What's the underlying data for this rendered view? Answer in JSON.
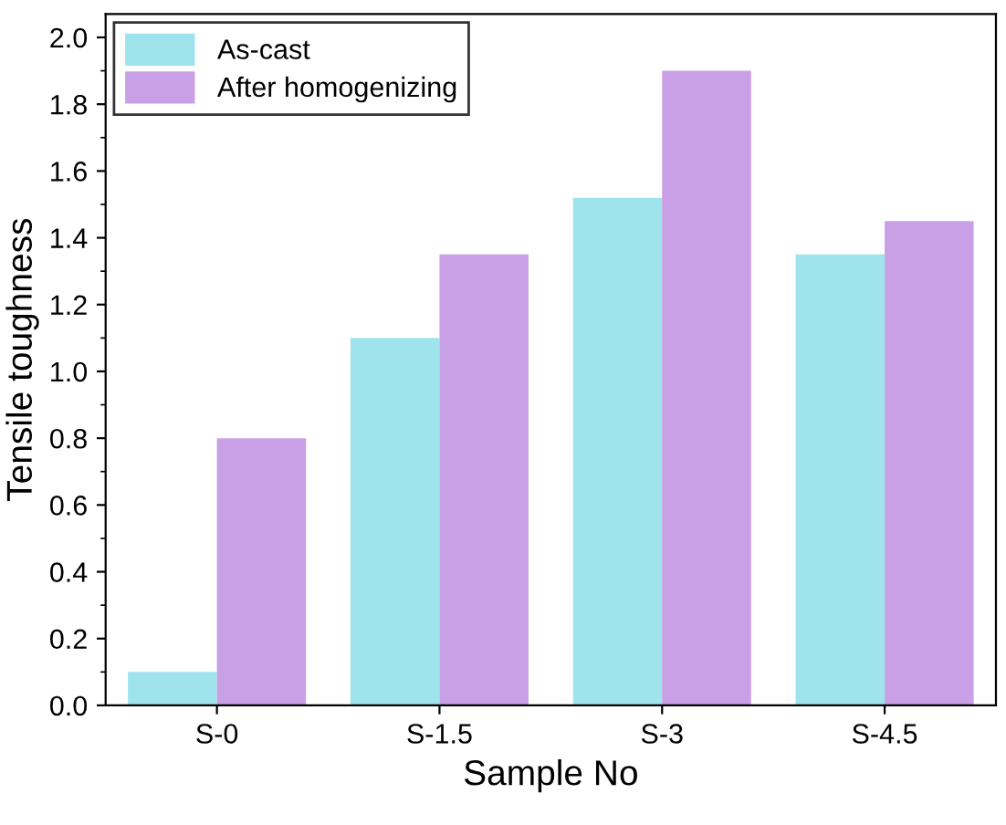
{
  "chart_data": {
    "type": "bar",
    "xlabel": "Sample No",
    "ylabel": "Tensile toughness",
    "categories": [
      "S-0",
      "S-1.5",
      "S-3",
      "S-4.5"
    ],
    "series": [
      {
        "name": "As-cast",
        "color": "#9fe3ec",
        "values": [
          0.1,
          1.1,
          1.52,
          1.35
        ]
      },
      {
        "name": "After homogenizing",
        "color": "#c9a0e6",
        "values": [
          0.8,
          1.35,
          1.9,
          1.45
        ]
      }
    ],
    "ylim": [
      0,
      2.07
    ],
    "yticks": [
      {
        "value": 0,
        "label": "0.0"
      },
      0.2,
      0.4,
      0.6,
      0.8,
      {
        "value": 1,
        "label": "1.0"
      },
      1.2,
      1.4,
      1.6,
      1.8,
      {
        "value": 2,
        "label": "2.0"
      }
    ],
    "grid": false,
    "legend": "top left"
  }
}
